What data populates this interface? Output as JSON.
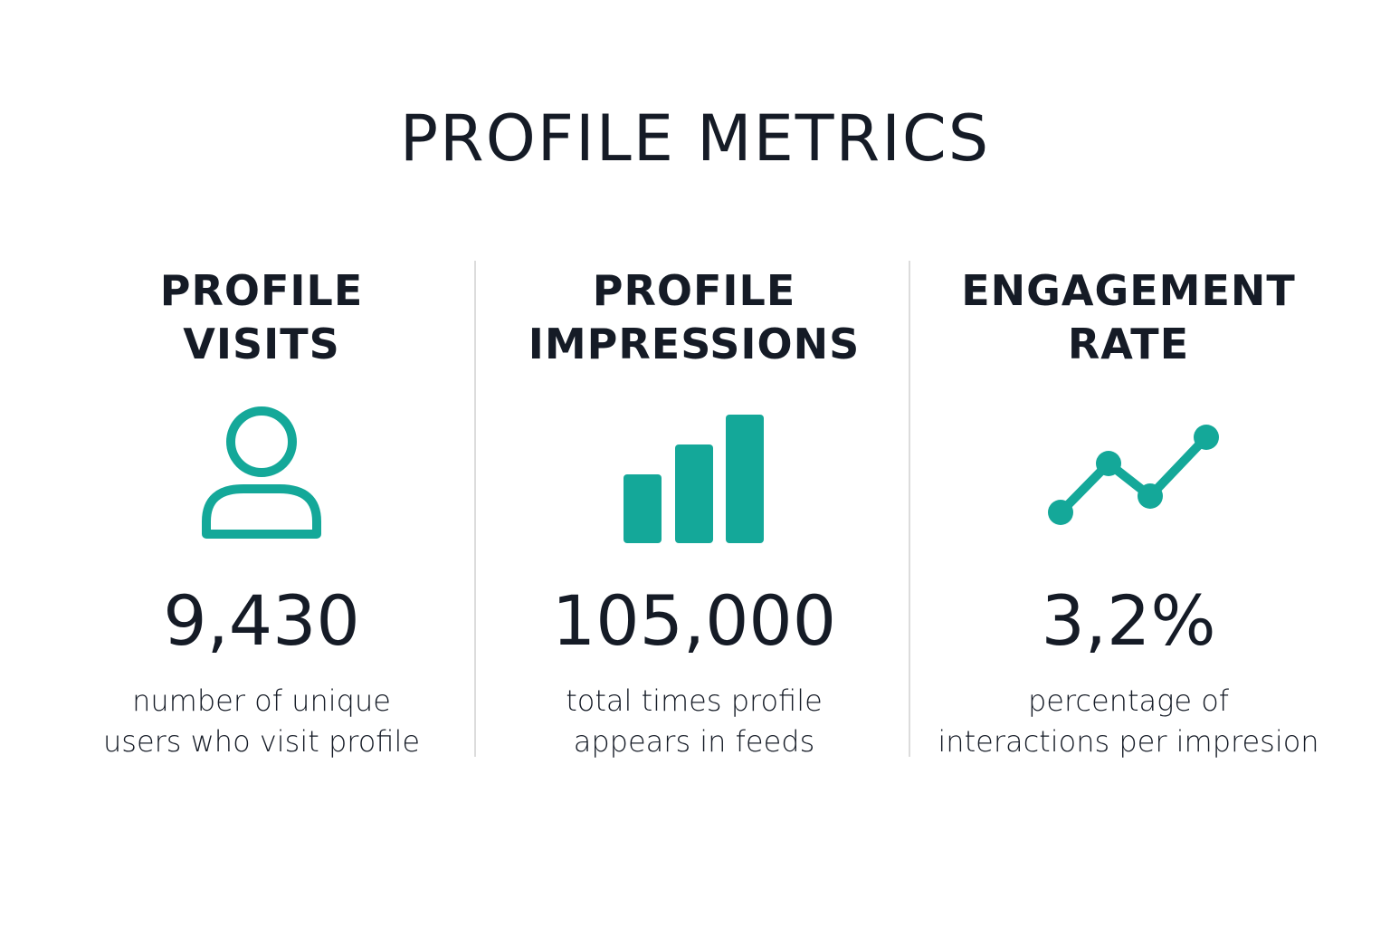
{
  "title": "PROFILE METRICS",
  "accent_color": "#14a899",
  "metrics": [
    {
      "heading_line1": "PROFILE",
      "heading_line2": "VISITS",
      "icon": "user-icon",
      "value": "9,430",
      "desc_line1": "number of unique",
      "desc_line2": "users who visit profile"
    },
    {
      "heading_line1": "PROFILE",
      "heading_line2": "IMPRESSIONS",
      "icon": "bar-chart-icon",
      "value": "105,000",
      "desc_line1": "total times profile",
      "desc_line2": "appears in feeds"
    },
    {
      "heading_line1": "ENGAGEMENT",
      "heading_line2": "RATE",
      "icon": "line-chart-icon",
      "value": "3,2%",
      "desc_line1": "percentage of",
      "desc_line2": "interactions per impresion"
    }
  ]
}
